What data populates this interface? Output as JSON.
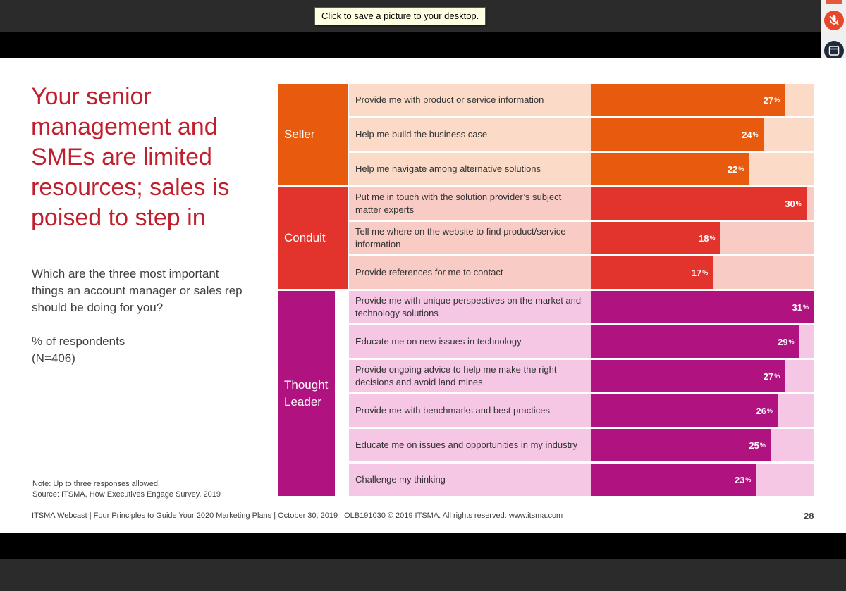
{
  "tooltip": "Click to save a picture to your desktop.",
  "side_tools": [
    {
      "icon": "mic-muted-icon"
    },
    {
      "icon": "window-icon"
    },
    {
      "icon": "raise-hand-icon"
    }
  ],
  "slide": {
    "title": "Your senior management and SMEs are limited resources; sales is poised to step in",
    "question": "Which are the three most important things an account manager or sales rep should be doing for you?",
    "respondents_line1": "% of respondents",
    "respondents_line2": "(N=406)",
    "note_line1": "Note: Up to three responses allowed.",
    "note_line2": "Source: ITSMA, How Executives Engage Survey, 2019",
    "footer": "ITSMA Webcast | Four Principles to Guide Your 2020 Marketing Plans | October 30, 2019 | OLB191030 © 2019 ITSMA. All rights reserved.  www.itsma.com",
    "page_number": "28"
  },
  "chart_data": {
    "type": "bar",
    "orientation": "horizontal",
    "unit": "%",
    "xlim": [
      0,
      31
    ],
    "groups": [
      {
        "label": "Seller",
        "color": "#e85b0e",
        "bg": "#fbdac8",
        "rows": [
          {
            "label": "Provide me with product or service information",
            "value": 27
          },
          {
            "label": "Help me build the business case",
            "value": 24
          },
          {
            "label": "Help me navigate among alternative solutions",
            "value": 22
          }
        ]
      },
      {
        "label": "Conduit",
        "color": "#e2342d",
        "bg": "#f8cbc5",
        "rows": [
          {
            "label": "Put me in touch with the solution provider’s subject matter experts",
            "value": 30
          },
          {
            "label": "Tell me where on the website to find product/service information",
            "value": 18
          },
          {
            "label": "Provide references for me to contact",
            "value": 17
          }
        ]
      },
      {
        "label": "Thought Leader",
        "color": "#b0137f",
        "bg": "#f6c6e5",
        "rows": [
          {
            "label": "Provide me with unique perspectives on the market and technology solutions",
            "value": 31
          },
          {
            "label": "Educate me on new issues in technology",
            "value": 29
          },
          {
            "label": "Provide ongoing advice to help me make the right decisions and avoid land mines",
            "value": 27
          },
          {
            "label": "Provide me with benchmarks and best practices",
            "value": 26
          },
          {
            "label": "Educate me on issues and opportunities in my industry",
            "value": 25
          },
          {
            "label": "Challenge my thinking",
            "value": 23
          }
        ]
      }
    ]
  }
}
